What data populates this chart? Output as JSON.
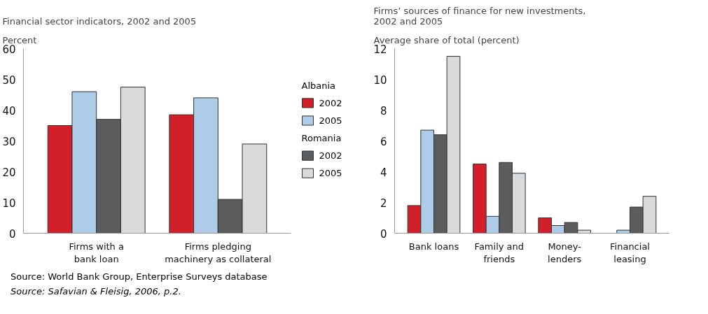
{
  "chart_data": [
    {
      "type": "bar",
      "title": "Financial sector indicators, 2002 and 2005",
      "ylabel": "Percent",
      "categories": [
        "Firms with a\nbank loan",
        "Firms pledging\nmachinery as collateral"
      ],
      "series": [
        {
          "name": "2002",
          "color": "#d2202a",
          "values": [
            35,
            38.5
          ]
        },
        {
          "name": "2005",
          "color": "#aecbe8",
          "values": [
            46,
            44
          ]
        },
        {
          "name": "2002",
          "color": "#5a5c5e",
          "values": [
            37,
            11
          ]
        },
        {
          "name": "2005",
          "color": "#d9dadc",
          "values": [
            47.5,
            29
          ]
        }
      ],
      "ylim": [
        0,
        60
      ],
      "yticks": [
        0,
        10,
        20,
        30,
        40,
        50,
        60
      ],
      "legend": "right",
      "annotations": [
        "Albania",
        "Romania",
        "Source: World Bank Group, Enterprise Surveys database",
        "Source: Safavian & Fleisig, 2006, p.2."
      ]
    },
    {
      "type": "bar",
      "title": "Firms’ sources of finance for new investments,\n2002 and 2005",
      "ylabel": "Average share of total (percent)",
      "categories": [
        "Bank loans",
        "Family and\nfriends",
        "Money-\nlenders",
        "Financial\nleasing"
      ],
      "series": [
        {
          "color": "#d2202a",
          "values": [
            1.8,
            4.5,
            1.0,
            null
          ]
        },
        {
          "color": "#aecbe8",
          "values": [
            6.7,
            1.1,
            0.5,
            0.2
          ]
        },
        {
          "color": "#5a5c5e",
          "values": [
            6.4,
            4.6,
            0.7,
            1.7
          ]
        },
        {
          "color": "#d9dadc",
          "values": [
            11.5,
            3.9,
            0.2,
            2.4
          ]
        }
      ],
      "ylim": [
        0,
        12
      ],
      "yticks": [
        0,
        2,
        4,
        6,
        8,
        10,
        12
      ]
    }
  ]
}
